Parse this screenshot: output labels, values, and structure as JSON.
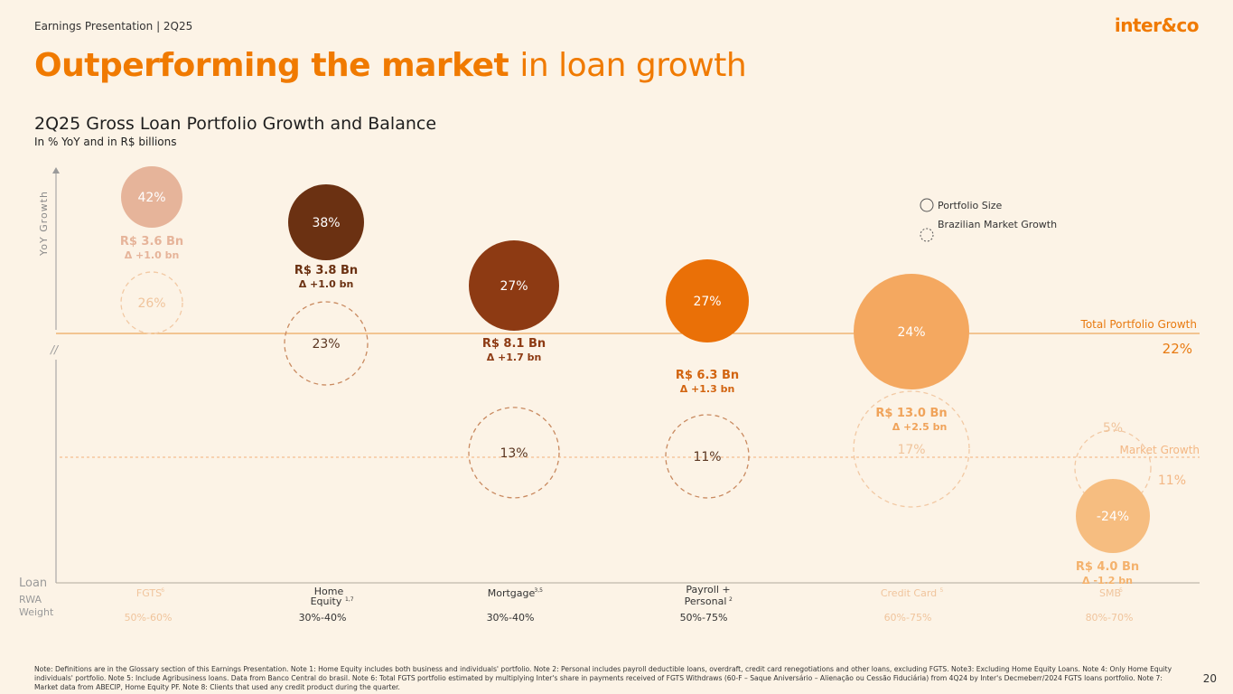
{
  "header": {
    "label": "Earnings Presentation | 2Q25",
    "logo": "inter&co",
    "title_bold": "Outperforming the market",
    "title_light": "in loan growth",
    "page_number": "20"
  },
  "chart_data": {
    "type": "scatter",
    "title": "2Q25 Gross Loan Portfolio Growth and Balance",
    "subtitle": "In % YoY and in R$ billions",
    "ylabel": "YoY Growth",
    "xlabel": "Loan",
    "row_label": "RWA Weight",
    "axis_break": "//",
    "legend": [
      {
        "name": "Portfolio Size",
        "style": "solid"
      },
      {
        "name": "Brazilian Market Growth",
        "style": "dashed"
      }
    ],
    "reference_lines": [
      {
        "name": "Total Portfolio Growth",
        "value": "22%"
      },
      {
        "name": "Market Growth",
        "value": "11%"
      }
    ],
    "series": [
      {
        "category": "FGTS",
        "sup": "6",
        "rwa": "50%-60%",
        "growth": 42,
        "growth_label": "42%",
        "balance": "R$ 3.6 Bn",
        "delta": "Δ +1.0 bn",
        "market_growth": 26,
        "market_label": "26%",
        "color": "#e6b49a",
        "text_color": "#e6b49a",
        "muted": true
      },
      {
        "category": "Home Equity",
        "sup": "1,7",
        "rwa": "30%-40%",
        "growth": 38,
        "growth_label": "38%",
        "balance": "R$ 3.8 Bn",
        "delta": "Δ +1.0 bn",
        "market_growth": 23,
        "market_label": "23%",
        "color": "#6b3112",
        "text_color": "#6b3112",
        "muted": false
      },
      {
        "category": "Mortgage",
        "sup": "3,5",
        "rwa": "30%-40%",
        "growth": 27,
        "growth_label": "27%",
        "balance": "R$ 8.1 Bn",
        "delta": "Δ +1.7 bn",
        "market_growth": 13,
        "market_label": "13%",
        "color": "#8d3a13",
        "text_color": "#8d3a13",
        "muted": false
      },
      {
        "category": "Payroll + Personal",
        "sup": "2",
        "rwa": "50%-75%",
        "growth": 27,
        "growth_label": "27%",
        "balance": "R$ 6.3 Bn",
        "delta": "Δ +1.3 bn",
        "market_growth": 11,
        "market_label": "11%",
        "color": "#ea7007",
        "text_color": "#d26410",
        "muted": false
      },
      {
        "category": "Credit Card",
        "sup": "5",
        "rwa": "60%-75%",
        "growth": 24,
        "growth_label": "24%",
        "balance": "R$ 13.0 Bn",
        "delta": "Δ +2.5 bn",
        "market_growth": 17,
        "market_label": "17%",
        "color": "#f4a860",
        "text_color": "#f0a35a",
        "muted": true
      },
      {
        "category": "SMB",
        "sup": "5",
        "rwa": "80%-70%",
        "growth": -24,
        "growth_label": "-24%",
        "balance": "R$ 4.0 Bn",
        "delta": "Δ -1.2 bn",
        "market_growth": 5,
        "market_label": "5%",
        "color": "#f6bd80",
        "text_color": "#f4b26d",
        "muted": true
      }
    ]
  },
  "footnote": {
    "text": "Note: Definitions are in the Glossary section of this Earnings Presentation. Note 1: Home Equity includes both business and individuals' portfolio. Note 2: Personal includes payroll deductible loans, overdraft, credit card renegotiations and other loans, excluding FGTS. Note3: Excluding Home Equity Loans. Note 4: Only Home Equity individuals' portfolio. Note 5: Include Agribusiness loans. Data from Banco Central do brasil. Note 6: Total FGTS portfolio estimated by multiplying Inter's share in payments received of FGTS Withdraws (60-F – Saque Aniversário – Alienação ou Cessão Fiduciária) from 4Q24 by Inter's Decmeberr/2024 FGTS loans portfolio. Note 7: Market data from ABECIP, Home Equity PF. Note 8: Clients that used any credit product during the quarter."
  }
}
